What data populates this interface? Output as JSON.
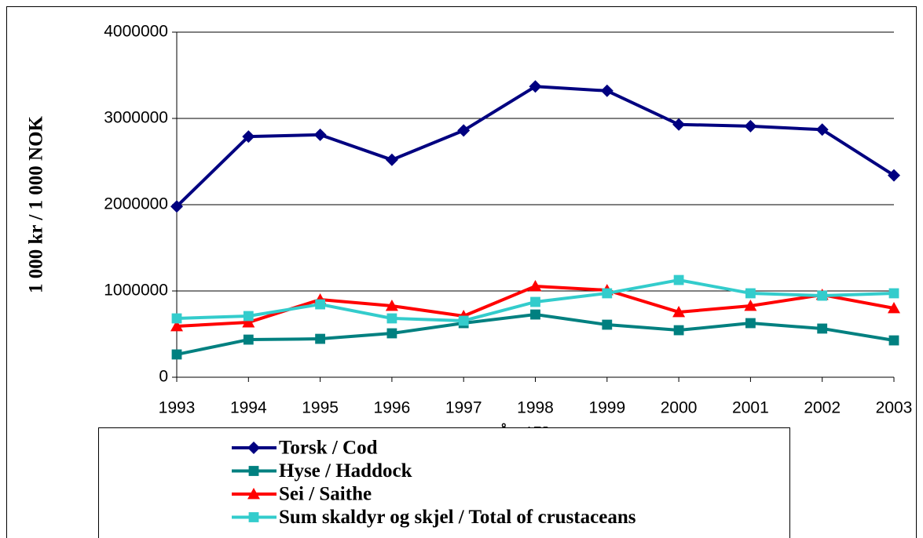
{
  "chart_data": {
    "type": "line",
    "y_label": "1 000 kr / 1 000 NOK",
    "x_label": "År / Year",
    "categories": [
      "1993",
      "1994",
      "1995",
      "1996",
      "1997",
      "1998",
      "1999",
      "2000",
      "2001",
      "2002",
      "2003"
    ],
    "series": [
      {
        "name": "Torsk / Cod",
        "color": "#000080",
        "marker": "diamond",
        "values": [
          1980000,
          2790000,
          2810000,
          2520000,
          2860000,
          3370000,
          3320000,
          2930000,
          2910000,
          2870000,
          2340000
        ]
      },
      {
        "name": "Hyse / Haddock",
        "color": "#008080",
        "marker": "square",
        "values": [
          264000,
          436000,
          445000,
          509000,
          627000,
          727000,
          609000,
          545000,
          627000,
          564000,
          427000
        ]
      },
      {
        "name": "Sei / Saithe",
        "color": "#ff0000",
        "marker": "triangle",
        "values": [
          591000,
          636000,
          900000,
          827000,
          709000,
          1055000,
          1009000,
          755000,
          827000,
          955000,
          800000
        ]
      },
      {
        "name": "Sum skaldyr og skjel / Total of crustaceans",
        "color": "#33cccc",
        "marker": "square",
        "values": [
          682000,
          709000,
          845000,
          682000,
          655000,
          873000,
          973000,
          1127000,
          973000,
          945000,
          973000
        ]
      }
    ],
    "ylim": [
      0,
      4000000
    ],
    "yticks": [
      0,
      1000000,
      2000000,
      3000000,
      4000000
    ],
    "grid": true,
    "legend": "bottom"
  }
}
